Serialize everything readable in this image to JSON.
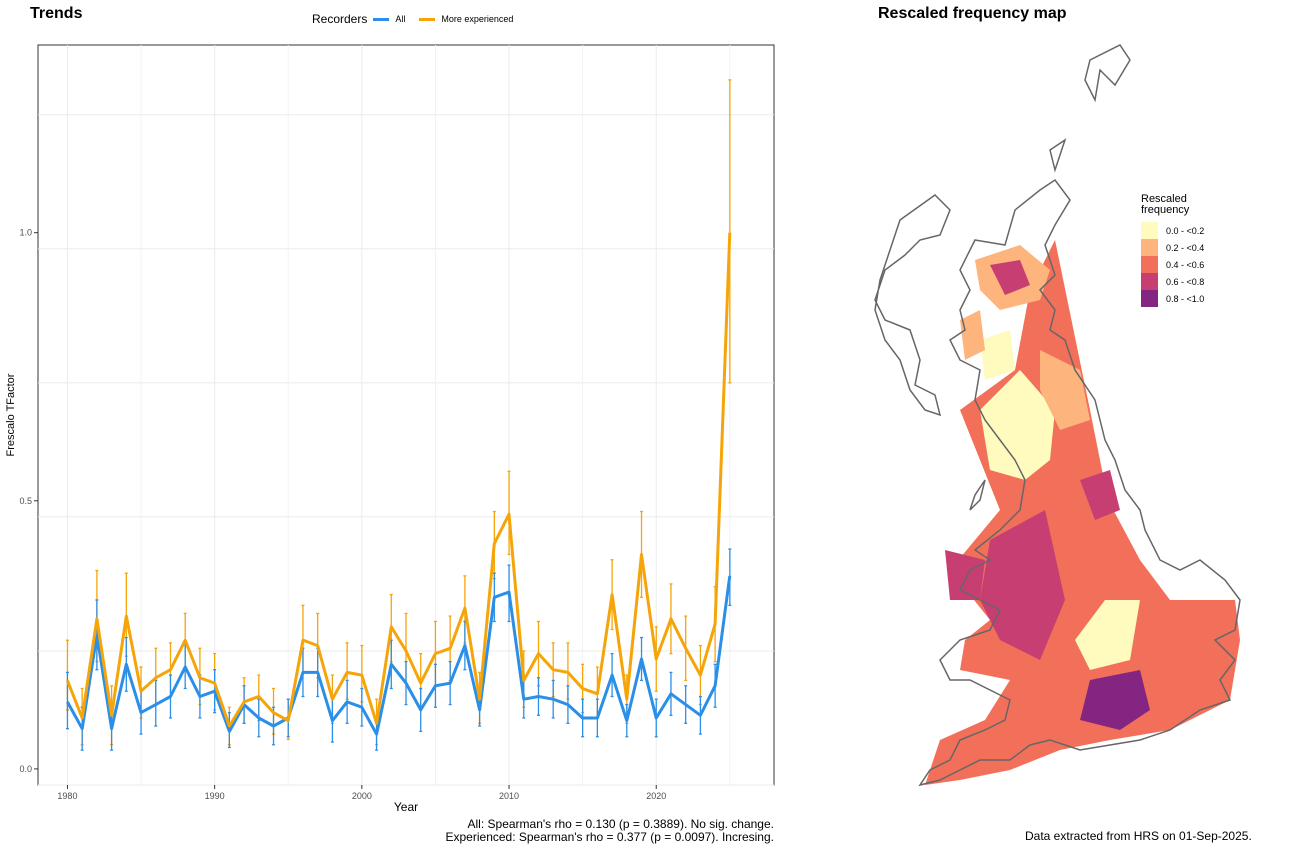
{
  "left_title": "Trends",
  "right_title": "Rescaled frequency map",
  "legend": {
    "title": "Recorders",
    "items": [
      {
        "label": "All",
        "color": "#2b8fe8"
      },
      {
        "label": "More experienced",
        "color": "#f5a50a"
      }
    ]
  },
  "stats": {
    "all": "All: Spearman's rho = 0.130 (p = 0.3889). No sig. change.",
    "experienced": "Experienced: Spearman's rho = 0.377 (p = 0.0097). Incresing."
  },
  "footer": "Data extracted from HRS on 01-Sep-2025.",
  "map_legend": {
    "title_line1": "Rescaled",
    "title_line2": "frequency",
    "items": [
      {
        "label": "0.0 - <0.2",
        "color": "#fffbbf"
      },
      {
        "label": "0.2 - <0.4",
        "color": "#fdb47d"
      },
      {
        "label": "0.4 - <0.6",
        "color": "#f2705a"
      },
      {
        "label": "0.6 - <0.8",
        "color": "#c73f72"
      },
      {
        "label": "0.8 - <1.0",
        "color": "#842681"
      }
    ]
  },
  "chart_data": {
    "type": "line",
    "xlabel": "Year",
    "ylabel": "Frescalo TFactor",
    "xlim": [
      1978,
      2028
    ],
    "ylim": [
      -0.03,
      1.35
    ],
    "x_ticks": [
      1980,
      1990,
      2000,
      2010,
      2020
    ],
    "x_tick_labels": [
      "1980",
      "1990",
      "2000",
      "2010",
      "2020"
    ],
    "y_ticks": [
      0.0,
      0.5,
      1.0
    ],
    "y_tick_labels": [
      "0.0",
      "0.5",
      "1.0"
    ],
    "grid": true,
    "legend_position": "top",
    "x": [
      1980,
      1981,
      1982,
      1983,
      1984,
      1985,
      1986,
      1987,
      1988,
      1989,
      1990,
      1991,
      1992,
      1993,
      1994,
      1995,
      1996,
      1997,
      1998,
      1999,
      2000,
      2001,
      2002,
      2003,
      2004,
      2005,
      2006,
      2007,
      2008,
      2009,
      2010,
      2011,
      2012,
      2013,
      2014,
      2015,
      2016,
      2017,
      2018,
      2019,
      2020,
      2021,
      2022,
      2023,
      2024,
      2025
    ],
    "series": [
      {
        "name": "All",
        "color": "#2b8fe8",
        "values": [
          0.125,
          0.075,
          0.25,
          0.075,
          0.195,
          0.105,
          0.12,
          0.135,
          0.19,
          0.135,
          0.145,
          0.07,
          0.12,
          0.095,
          0.08,
          0.095,
          0.18,
          0.18,
          0.09,
          0.125,
          0.115,
          0.065,
          0.195,
          0.16,
          0.11,
          0.155,
          0.16,
          0.23,
          0.11,
          0.32,
          0.33,
          0.13,
          0.135,
          0.13,
          0.12,
          0.095,
          0.095,
          0.175,
          0.09,
          0.205,
          0.095,
          0.14,
          0.12,
          0.1,
          0.155,
          0.36
        ],
        "lower": [
          0.075,
          0.035,
          0.185,
          0.035,
          0.145,
          0.065,
          0.08,
          0.095,
          0.15,
          0.095,
          0.105,
          0.04,
          0.085,
          0.06,
          0.045,
          0.06,
          0.135,
          0.135,
          0.05,
          0.085,
          0.08,
          0.035,
          0.15,
          0.12,
          0.07,
          0.115,
          0.12,
          0.185,
          0.08,
          0.275,
          0.275,
          0.095,
          0.1,
          0.095,
          0.085,
          0.06,
          0.06,
          0.135,
          0.06,
          0.165,
          0.06,
          0.1,
          0.085,
          0.065,
          0.115,
          0.305
        ],
        "upper": [
          0.18,
          0.115,
          0.315,
          0.115,
          0.245,
          0.145,
          0.165,
          0.175,
          0.235,
          0.175,
          0.185,
          0.105,
          0.155,
          0.13,
          0.115,
          0.13,
          0.225,
          0.225,
          0.13,
          0.165,
          0.15,
          0.095,
          0.24,
          0.2,
          0.15,
          0.195,
          0.2,
          0.275,
          0.14,
          0.365,
          0.38,
          0.165,
          0.17,
          0.165,
          0.155,
          0.13,
          0.13,
          0.215,
          0.12,
          0.245,
          0.13,
          0.18,
          0.155,
          0.135,
          0.195,
          0.41
        ]
      },
      {
        "name": "More experienced",
        "color": "#f5a50a",
        "values": [
          0.165,
          0.095,
          0.28,
          0.1,
          0.285,
          0.145,
          0.17,
          0.185,
          0.24,
          0.17,
          0.16,
          0.08,
          0.125,
          0.135,
          0.105,
          0.09,
          0.24,
          0.23,
          0.13,
          0.18,
          0.175,
          0.085,
          0.265,
          0.22,
          0.16,
          0.215,
          0.225,
          0.3,
          0.13,
          0.42,
          0.475,
          0.165,
          0.215,
          0.185,
          0.18,
          0.15,
          0.14,
          0.325,
          0.13,
          0.4,
          0.205,
          0.28,
          0.225,
          0.175,
          0.27,
          1.0
        ],
        "lower": [
          0.11,
          0.045,
          0.2,
          0.045,
          0.21,
          0.095,
          0.12,
          0.135,
          0.19,
          0.12,
          0.11,
          0.045,
          0.085,
          0.09,
          0.065,
          0.055,
          0.18,
          0.17,
          0.085,
          0.13,
          0.125,
          0.045,
          0.2,
          0.16,
          0.11,
          0.155,
          0.165,
          0.235,
          0.085,
          0.355,
          0.4,
          0.115,
          0.155,
          0.135,
          0.13,
          0.105,
          0.095,
          0.26,
          0.085,
          0.32,
          0.145,
          0.215,
          0.165,
          0.12,
          0.2,
          0.72
        ],
        "upper": [
          0.24,
          0.15,
          0.37,
          0.155,
          0.365,
          0.19,
          0.225,
          0.235,
          0.29,
          0.225,
          0.215,
          0.115,
          0.17,
          0.175,
          0.15,
          0.13,
          0.305,
          0.29,
          0.175,
          0.235,
          0.23,
          0.13,
          0.325,
          0.29,
          0.215,
          0.275,
          0.285,
          0.36,
          0.18,
          0.48,
          0.555,
          0.22,
          0.275,
          0.235,
          0.235,
          0.195,
          0.19,
          0.39,
          0.175,
          0.48,
          0.265,
          0.345,
          0.285,
          0.23,
          0.34,
          1.285
        ]
      }
    ]
  }
}
